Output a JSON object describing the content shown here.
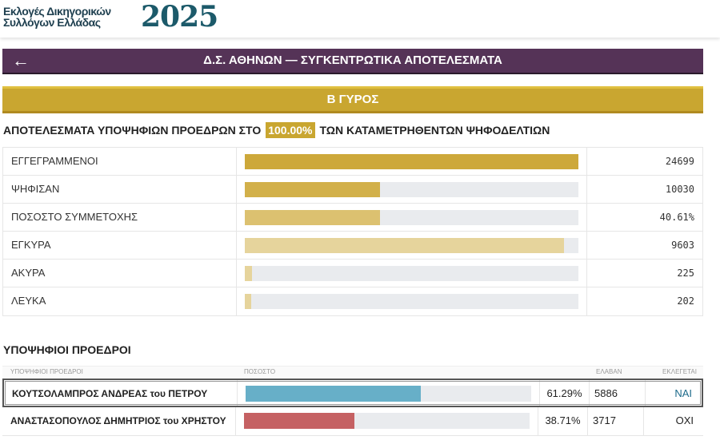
{
  "header": {
    "logo_line1": "Εκλογές Δικηγορικών",
    "logo_line2": "Συλλόγων Ελλάδας",
    "logo_year": "2025"
  },
  "title_bar": {
    "back_icon": "arrow-left-icon",
    "title": "Δ.Σ. ΑΘΗΝΩΝ —  ΣΥΓΚΕΝΤΡΩΤΙΚΑ ΑΠΟΤΕΛΕΣΜΑΤΑ"
  },
  "round": "Β ΓΥΡΟΣ",
  "results_heading": {
    "before": "ΑΠΟΤΕΛΕΣΜΑΤΑ ΥΠΟΨΗΦΙΩΝ ΠΡΟΕΔΡΩΝ ΣΤΟ",
    "percent": "100.00%",
    "after": "ΤΩΝ ΚΑΤΑΜΕΤΡΗΘΕΝΤΩΝ ΨΗΦΟΔΕΛΤΙΩΝ"
  },
  "stats": [
    {
      "label": "ΕΓΓΕΓΡΑΜΜΕΝΟΙ",
      "value": "24699",
      "fill_percent": 100,
      "color": "#cda83a"
    },
    {
      "label": "ΨΗΦΙΣΑΝ",
      "value": "10030",
      "fill_percent": 40.61,
      "color": "#d2b04a"
    },
    {
      "label": "ΠΟΣΟΣΤΟ ΣΥΜΜΕΤΟΧΗΣ",
      "value": "40.61%",
      "fill_percent": 40.61,
      "color": "#dcc170"
    },
    {
      "label": "ΕΓΚΥΡΑ",
      "value": "9603",
      "fill_percent": 95.74,
      "color": "#e6d49c"
    },
    {
      "label": "ΑΚΥΡΑ",
      "value": "225",
      "fill_percent": 2.24,
      "color": "#e6d49c"
    },
    {
      "label": "ΛΕΥΚΑ",
      "value": "202",
      "fill_percent": 2.01,
      "color": "#e6d49c"
    }
  ],
  "candidates_heading": "ΥΠΟΨΗΦΙΟΙ ΠΡΟΕΔΡΟΙ",
  "candidates_columns": {
    "name": "ΥΠΟΨΗΦΙΟΙ ΠΡΟΕΔΡΟΙ",
    "percent": "ΠΟΣΟΣΤΟ",
    "votes": "ΕΛΑΒΑΝ",
    "elected": "ΕΚΛΕΓΕΤΑΙ"
  },
  "candidates": [
    {
      "name": "ΚΟΥΤΣΟΛΑΜΠΡΟΣ ΑΝΔΡΕΑΣ του ΠΕΤΡΟΥ",
      "percent": "61.29%",
      "fill_percent": 61.29,
      "votes": "5886",
      "elected": "ΝΑΙ",
      "color": "#67afc8",
      "elected_color": "#1c6a8a"
    },
    {
      "name": "ΑΝΑΣΤΑΣΟΠΟΥΛΟΣ ΔΗΜΗΤΡΙΟΣ του ΧΡΗΣΤΟΥ",
      "percent": "38.71%",
      "fill_percent": 38.71,
      "votes": "3717",
      "elected": "ΟΧΙ",
      "color": "#c56163",
      "elected_color": "#222222"
    }
  ]
}
